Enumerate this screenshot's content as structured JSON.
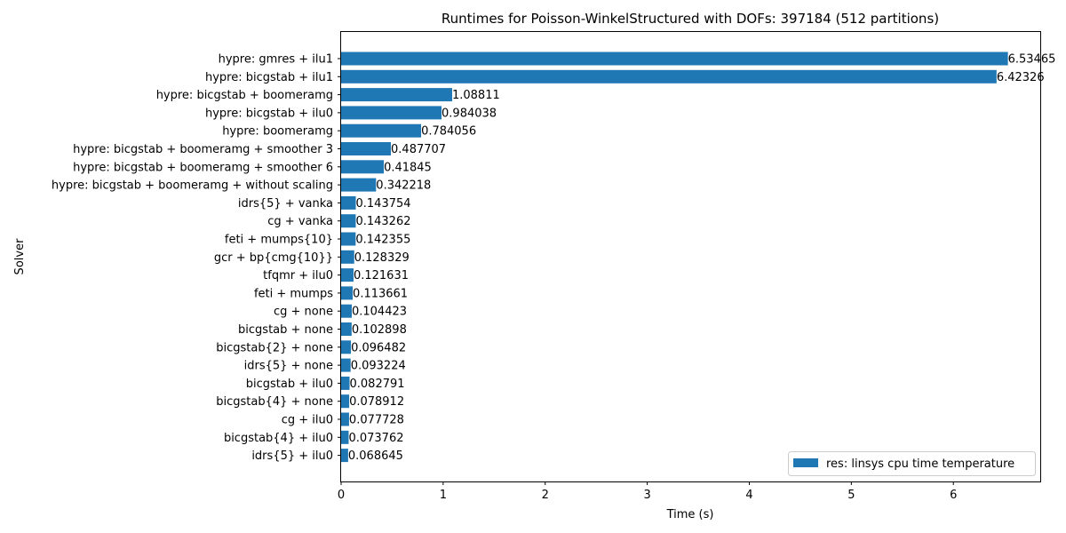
{
  "chart_data": {
    "type": "bar",
    "orientation": "horizontal",
    "title": "Runtimes for Poisson-WinkelStructured with DOFs: 397184 (512 partitions)",
    "xlabel": "Time (s)",
    "ylabel": "Solver",
    "xlim": [
      0,
      6.86
    ],
    "xticks": [
      "0",
      "1",
      "2",
      "3",
      "4",
      "5",
      "6"
    ],
    "grid": false,
    "legend_position": "lower-right",
    "bar_color": "#1f77b4",
    "series": [
      {
        "name": "res: linsys cpu time temperature",
        "categories": [
          "hypre: gmres + ilu1",
          "hypre: bicgstab + ilu1",
          "hypre: bicgstab + boomeramg",
          "hypre: bicgstab + ilu0",
          "hypre: boomeramg",
          "hypre: bicgstab + boomeramg + smoother 3",
          "hypre: bicgstab + boomeramg + smoother 6",
          "hypre: bicgstab + boomeramg + without scaling",
          "idrs{5} + vanka",
          "cg + vanka",
          "feti + mumps{10}",
          "gcr + bp{cmg{10}}",
          "tfqmr + ilu0",
          "feti + mumps",
          "cg + none",
          "bicgstab + none",
          "bicgstab{2} + none",
          "idrs{5} + none",
          "bicgstab + ilu0",
          "bicgstab{4} + none",
          "cg + ilu0",
          "bicgstab{4} + ilu0",
          "idrs{5} + ilu0"
        ],
        "values": [
          6.53465,
          6.42326,
          1.08811,
          0.984038,
          0.784056,
          0.487707,
          0.41845,
          0.342218,
          0.143754,
          0.143262,
          0.142355,
          0.128329,
          0.121631,
          0.113661,
          0.104423,
          0.102898,
          0.096482,
          0.093224,
          0.082791,
          0.078912,
          0.077728,
          0.073762,
          0.068645
        ],
        "labels": [
          "6.53465",
          "6.42326",
          "1.08811",
          "0.984038",
          "0.784056",
          "0.487707",
          "0.41845",
          "0.342218",
          "0.143754",
          "0.143262",
          "0.142355",
          "0.128329",
          "0.121631",
          "0.113661",
          "0.104423",
          "0.102898",
          "0.096482",
          "0.093224",
          "0.082791",
          "0.078912",
          "0.077728",
          "0.073762",
          "0.068645"
        ]
      }
    ]
  }
}
